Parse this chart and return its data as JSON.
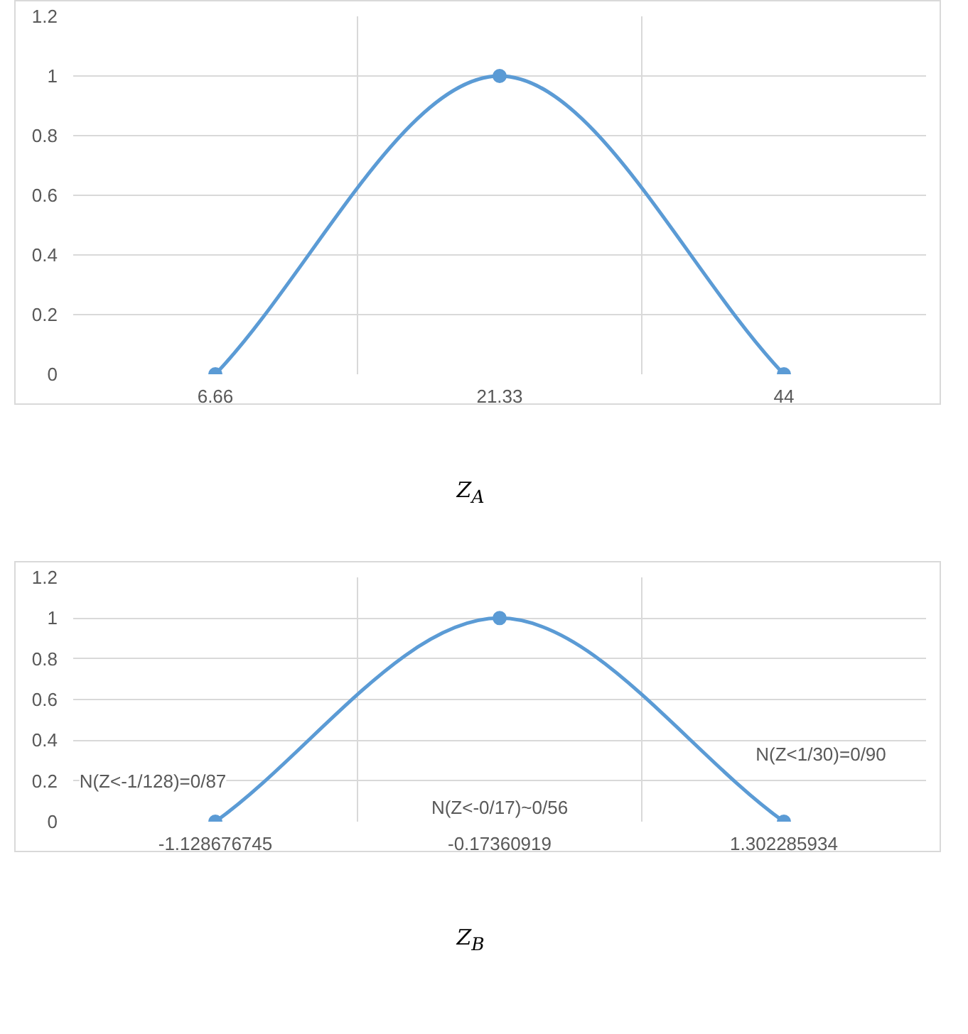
{
  "chart_data": [
    {
      "type": "line",
      "categories": [
        "6.66",
        "21.33",
        "44"
      ],
      "values": [
        0,
        1,
        0
      ],
      "color": "#5b9bd5",
      "marker": "circle",
      "ylim": [
        0,
        1.2
      ],
      "yticks": [
        0,
        0.2,
        0.4,
        0.6,
        0.8,
        1,
        1.2
      ],
      "grid": true,
      "xlabel": "Z$_{A}$"
    },
    {
      "type": "line",
      "categories": [
        "-1.128676745",
        "-0.17360919",
        "1.302285934"
      ],
      "values": [
        0,
        1,
        0
      ],
      "color": "#5b9bd5",
      "marker": "circle",
      "ylim": [
        0,
        1.2
      ],
      "yticks": [
        0,
        0.2,
        0.4,
        0.6,
        0.8,
        1,
        1.2
      ],
      "grid": true,
      "xlabel": "Z$_{B}$",
      "annotations": [
        "N(Z<-1/128)=0/87",
        "N(Z<-0/17)~0/56",
        "N(Z<1/30)=0/90"
      ]
    }
  ]
}
